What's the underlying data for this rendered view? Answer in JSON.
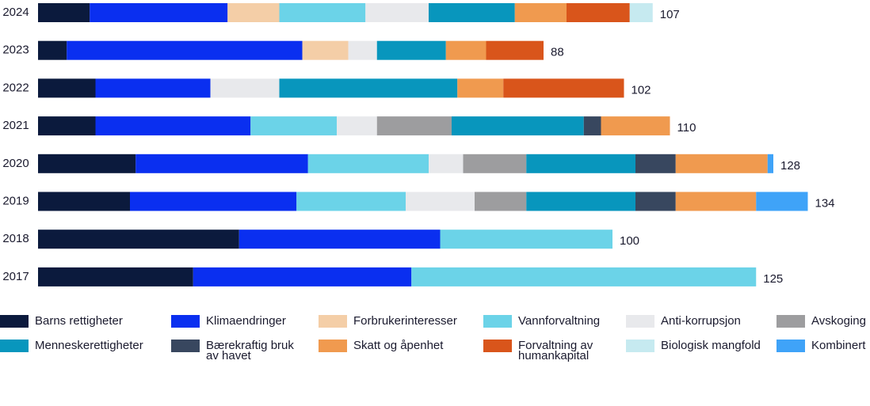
{
  "chart_data": {
    "type": "stacked-bar-horizontal",
    "categories": [
      "2024",
      "2023",
      "2022",
      "2021",
      "2020",
      "2019",
      "2018",
      "2017"
    ],
    "totals": [
      107,
      88,
      102,
      110,
      128,
      134,
      100,
      125
    ],
    "series": [
      {
        "name": "Barns rettigheter",
        "color": "#0b1a3d",
        "values": [
          9,
          5,
          10,
          10,
          17,
          16,
          35,
          27
        ]
      },
      {
        "name": "Klimaendringer",
        "color": "#0a2ff0",
        "values": [
          24,
          41,
          20,
          27,
          30,
          29,
          35,
          38
        ]
      },
      {
        "name": "Forbrukerinteresser",
        "color": "#f4cea7",
        "values": [
          9,
          8,
          null,
          null,
          null,
          null,
          null,
          null
        ]
      },
      {
        "name": "Vannforvaltning",
        "color": "#6bd3e8",
        "values": [
          15,
          null,
          null,
          15,
          21,
          19,
          30,
          60
        ]
      },
      {
        "name": "Anti-korrupsjon",
        "color": "#e8e9ec",
        "values": [
          11,
          5,
          12,
          7,
          6,
          12,
          null,
          null
        ]
      },
      {
        "name": "Avskoging",
        "color": "#9d9d9f",
        "values": [
          null,
          null,
          null,
          13,
          11,
          9,
          null,
          null
        ]
      },
      {
        "name": "Menneskerettigheter",
        "color": "#0896bd",
        "values": [
          15,
          12,
          31,
          23,
          19,
          19,
          null,
          null
        ]
      },
      {
        "name": "Bærekraftig bruk av havet",
        "color": "#38475f",
        "values": [
          null,
          null,
          null,
          3,
          7,
          7,
          null,
          null
        ]
      },
      {
        "name": "Skatt og åpenhet",
        "color": "#f09a4f",
        "values": [
          9,
          7,
          8,
          12,
          16,
          14,
          null,
          null
        ]
      },
      {
        "name": "Forvaltning av humankapital",
        "color": "#d9551b",
        "values": [
          11,
          10,
          21,
          null,
          null,
          null,
          null,
          null
        ]
      },
      {
        "name": "Biologisk mangfold",
        "color": "#c6eaf0",
        "values": [
          4,
          null,
          null,
          null,
          null,
          null,
          null,
          null
        ]
      },
      {
        "name": "Kombinert",
        "color": "#3fa3f8",
        "values": [
          null,
          null,
          null,
          null,
          1,
          9,
          null,
          null
        ]
      }
    ]
  }
}
